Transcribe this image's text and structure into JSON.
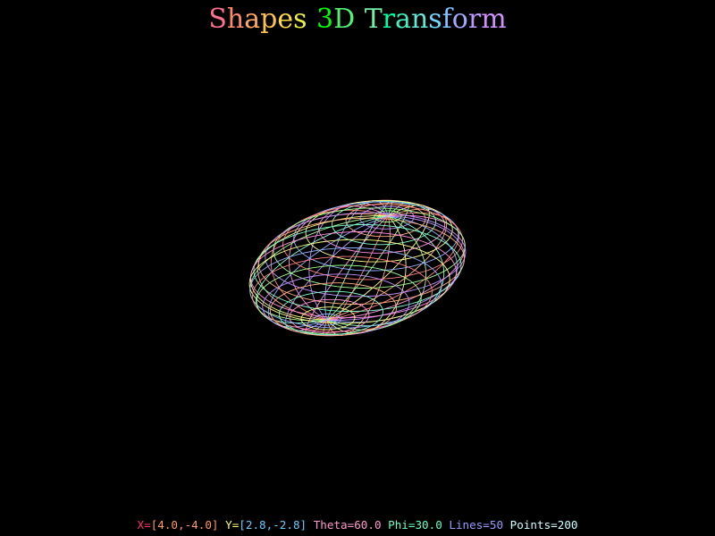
{
  "title": {
    "text": "Shapes 3D Transform",
    "letter_colors": [
      "#ff6f8f",
      "#ff8a6a",
      "#ffa860",
      "#ffc050",
      "#ffd940",
      "#e8f040",
      "#00ff00",
      "#50f070",
      "#70f0a0",
      "#00ffa0",
      "#40f0c0",
      "#60e8d8",
      "#70d8ff",
      "#80c0ff",
      "#a0a8ff",
      "#b89aff",
      "#d090ff",
      "#e088ff"
    ]
  },
  "status": {
    "x_prefix": "X=",
    "x_range": "[4.0,-4.0]",
    "y_prefix": "Y=",
    "y_range": "[2.8,-2.8]",
    "theta": "Theta=60.0",
    "phi": "Phi=30.0",
    "lines": "Lines=50",
    "points": "Points=200",
    "colors": {
      "x_prefix": "#ff3366",
      "x_range": "#ff9966",
      "y_prefix": "#ffff66",
      "y_range": "#66ccff",
      "theta": "#ff99cc",
      "phi": "#66ffcc",
      "lines": "#9999ff",
      "points": "#ccffff"
    }
  },
  "shape": {
    "type": "ellipsoid-wireframe",
    "semi_axes": [
      3.2,
      1.3,
      1.5
    ],
    "theta_deg": 60.0,
    "phi_deg": 30.0,
    "lines": 50,
    "points": 200,
    "palette": [
      "#ff8080",
      "#ffb080",
      "#ffff88",
      "#a0ff90",
      "#80ffd0",
      "#8fb0ff",
      "#c090ff",
      "#ff90e0"
    ]
  }
}
